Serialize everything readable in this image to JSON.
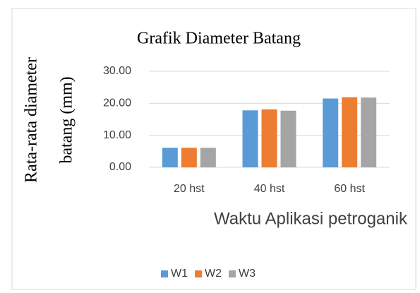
{
  "chart_data": {
    "type": "bar",
    "title": "Grafik Diameter Batang",
    "ylabel": [
      "Rata-rata diameter",
      "batang (mm)"
    ],
    "xlabel": "Waktu Aplikasi petroganik",
    "categories": [
      "20 hst",
      "40 hst",
      "60 hst"
    ],
    "series": [
      {
        "name": "W1",
        "color": "#5b9bd5",
        "values": [
          6.1,
          17.8,
          21.5
        ]
      },
      {
        "name": "W2",
        "color": "#ed7d31",
        "values": [
          6.1,
          18.1,
          21.9
        ]
      },
      {
        "name": "W3",
        "color": "#a5a5a5",
        "values": [
          6.1,
          17.7,
          21.8
        ]
      }
    ],
    "ylim": [
      0,
      30
    ],
    "yticks": [
      {
        "value": 0,
        "label": "0.00"
      },
      {
        "value": 10,
        "label": "10.00"
      },
      {
        "value": 20,
        "label": "20.00"
      },
      {
        "value": 30,
        "label": "30.00"
      }
    ],
    "grid": true,
    "legend": "bottom"
  }
}
